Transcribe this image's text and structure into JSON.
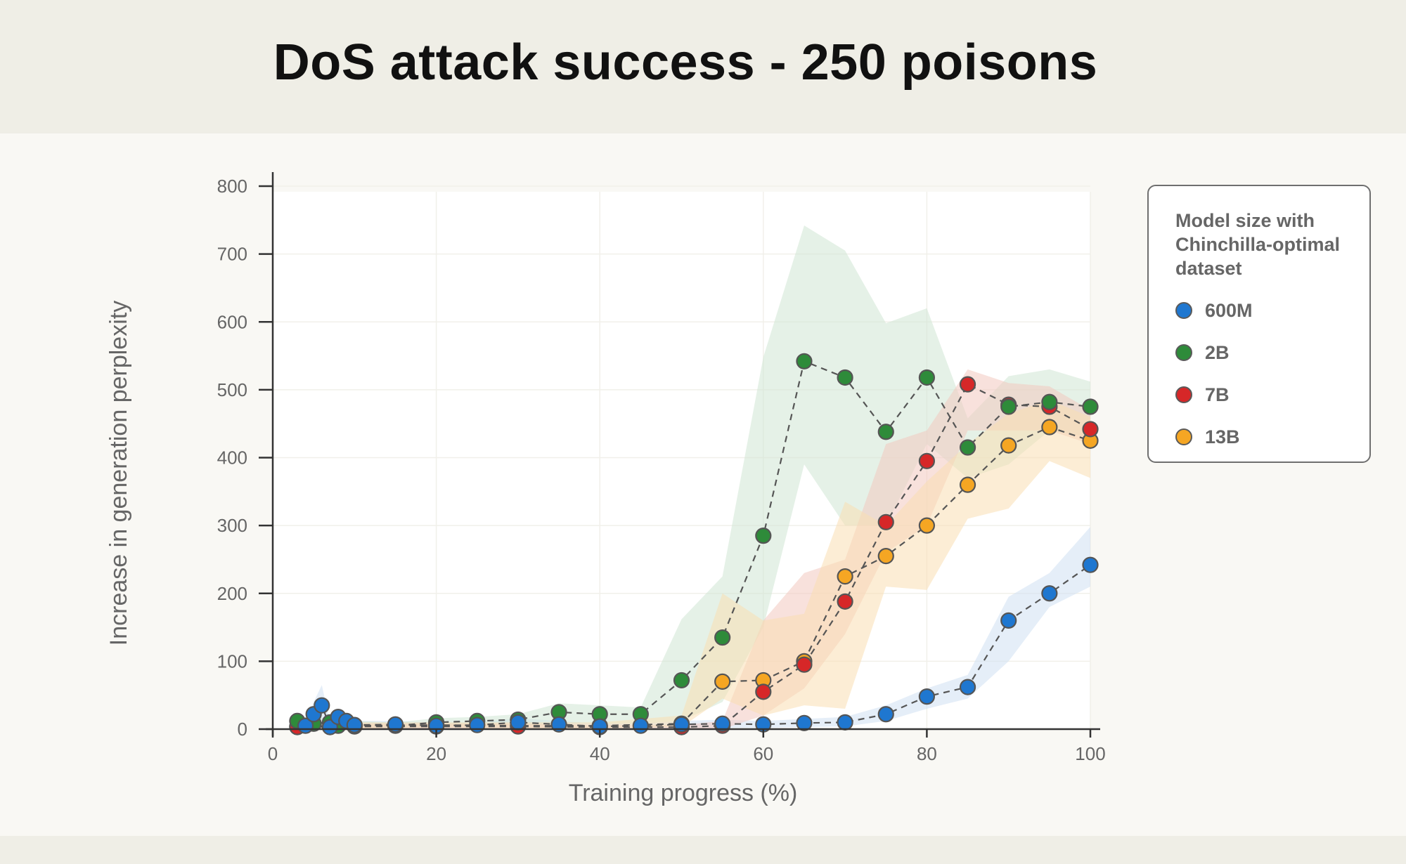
{
  "page": {
    "title": "DoS attack success - 250 poisons"
  },
  "legend": {
    "title": "Model size with Chinchilla-optimal dataset",
    "items": [
      {
        "label": "600M",
        "color": "#1f77d0"
      },
      {
        "label": "2B",
        "color": "#2e8b3a"
      },
      {
        "label": "7B",
        "color": "#d62728"
      },
      {
        "label": "13B",
        "color": "#f5a623"
      }
    ]
  },
  "chart_data": {
    "type": "line",
    "title": "DoS attack success - 250 poisons",
    "xlabel": "Training progress (%)",
    "ylabel": "Increase in generation perplexity",
    "xlim": [
      0,
      100
    ],
    "ylim": [
      0,
      800
    ],
    "xticks": [
      0,
      20,
      40,
      60,
      80,
      100
    ],
    "yticks": [
      0,
      100,
      200,
      300,
      400,
      500,
      600,
      700,
      800
    ],
    "grid": true,
    "legend_position": "right",
    "series": [
      {
        "name": "600M",
        "color": "#1f77d0",
        "fill": "#cfe0f3",
        "x": [
          4,
          5,
          6,
          7,
          8,
          9,
          10,
          15,
          20,
          25,
          30,
          35,
          40,
          45,
          50,
          55,
          60,
          65,
          70,
          75,
          80,
          85,
          90,
          95,
          100
        ],
        "y": [
          5,
          22,
          35,
          3,
          18,
          12,
          6,
          7,
          5,
          6,
          10,
          7,
          4,
          5,
          7,
          8,
          7,
          9,
          10,
          22,
          48,
          62,
          160,
          200,
          242
        ],
        "lower": [
          0,
          0,
          5,
          0,
          2,
          2,
          1,
          2,
          1,
          2,
          2,
          2,
          1,
          1,
          2,
          2,
          2,
          3,
          4,
          12,
          30,
          45,
          100,
          180,
          210
        ],
        "upper": [
          10,
          40,
          65,
          10,
          30,
          20,
          12,
          12,
          9,
          10,
          16,
          12,
          8,
          9,
          12,
          14,
          12,
          15,
          18,
          35,
          60,
          80,
          195,
          230,
          298
        ]
      },
      {
        "name": "2B",
        "color": "#2e8b3a",
        "fill": "#cfe6d4",
        "x": [
          3,
          5,
          7,
          8,
          10,
          15,
          20,
          25,
          30,
          35,
          40,
          45,
          50,
          55,
          60,
          65,
          70,
          75,
          80,
          85,
          90,
          95,
          100
        ],
        "y": [
          12,
          8,
          10,
          5,
          6,
          5,
          10,
          12,
          14,
          25,
          22,
          22,
          72,
          135,
          285,
          542,
          518,
          438,
          518,
          415,
          475,
          482,
          475
        ],
        "lower": [
          2,
          2,
          2,
          1,
          2,
          2,
          4,
          4,
          5,
          8,
          8,
          8,
          12,
          40,
          150,
          390,
          300,
          300,
          420,
          370,
          390,
          440,
          430
        ],
        "upper": [
          20,
          15,
          18,
          10,
          12,
          10,
          16,
          18,
          22,
          38,
          35,
          32,
          162,
          225,
          548,
          742,
          705,
          598,
          620,
          458,
          520,
          530,
          512
        ]
      },
      {
        "name": "7B",
        "color": "#d62728",
        "fill": "#f2c9c0",
        "x": [
          3,
          10,
          20,
          30,
          40,
          50,
          55,
          60,
          65,
          70,
          75,
          80,
          85,
          90,
          95,
          100
        ],
        "y": [
          3,
          4,
          4,
          4,
          3,
          3,
          5,
          55,
          95,
          188,
          305,
          395,
          508,
          478,
          475,
          442
        ],
        "lower": [
          0,
          0,
          0,
          0,
          0,
          0,
          0,
          20,
          60,
          140,
          260,
          300,
          440,
          440,
          440,
          420
        ],
        "upper": [
          6,
          8,
          8,
          8,
          6,
          6,
          12,
          160,
          230,
          250,
          420,
          440,
          530,
          510,
          505,
          470
        ]
      },
      {
        "name": "13B",
        "color": "#f5a623",
        "fill": "#fadfb2",
        "x": [
          3,
          10,
          20,
          30,
          40,
          50,
          55,
          60,
          65,
          70,
          75,
          80,
          85,
          90,
          95,
          100
        ],
        "y": [
          4,
          5,
          6,
          5,
          5,
          8,
          70,
          72,
          100,
          225,
          255,
          300,
          360,
          418,
          445,
          425
        ],
        "lower": [
          0,
          1,
          2,
          1,
          1,
          3,
          45,
          20,
          35,
          30,
          210,
          205,
          310,
          325,
          395,
          370
        ],
        "upper": [
          8,
          10,
          10,
          10,
          10,
          20,
          200,
          160,
          170,
          335,
          300,
          365,
          420,
          465,
          485,
          460
        ]
      }
    ]
  }
}
